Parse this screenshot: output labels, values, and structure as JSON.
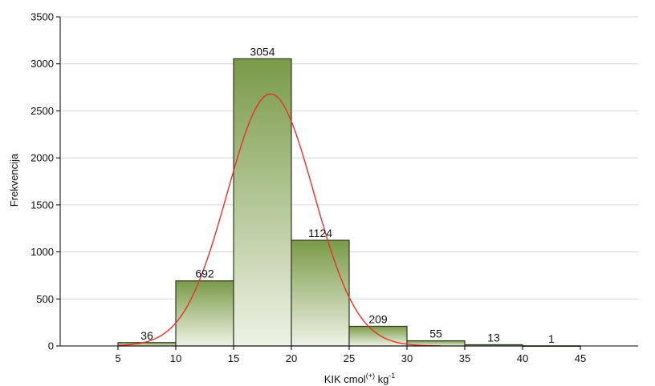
{
  "chart_data": {
    "type": "bar",
    "subtype": "histogram",
    "bins": [
      [
        5,
        10
      ],
      [
        10,
        15
      ],
      [
        15,
        20
      ],
      [
        20,
        25
      ],
      [
        25,
        30
      ],
      [
        30,
        35
      ],
      [
        35,
        40
      ],
      [
        40,
        45
      ]
    ],
    "values": [
      36,
      692,
      3054,
      1124,
      209,
      55,
      13,
      1
    ],
    "data_labels": [
      "36",
      "692",
      "3054",
      "1124",
      "209",
      "55",
      "13",
      "1"
    ],
    "x_ticks": [
      "5",
      "10",
      "15",
      "20",
      "25",
      "30",
      "35",
      "40",
      "45"
    ],
    "y_ticks": [
      "0",
      "500",
      "1000",
      "1500",
      "2000",
      "2500",
      "3000",
      "3500"
    ],
    "xlabel": "KIK cmol",
    "xlabel_sup1": "(+)",
    "xlabel_mid": " kg",
    "xlabel_sup2": "-1",
    "ylabel": "Frekvencija",
    "xlim": [
      0,
      50
    ],
    "ylim": [
      0,
      3500
    ],
    "grid": true,
    "legend": "none",
    "fit_curve": {
      "type": "normal",
      "mean": 18.2,
      "sd": 3.75,
      "peak": 2680
    },
    "colors": {
      "bar_top": "#7a9a48",
      "bar_bottom": "#eef3e6",
      "bar_edge": "#2e3a1f",
      "curve": "#e8302a",
      "grid": "#d7d7d7"
    }
  }
}
